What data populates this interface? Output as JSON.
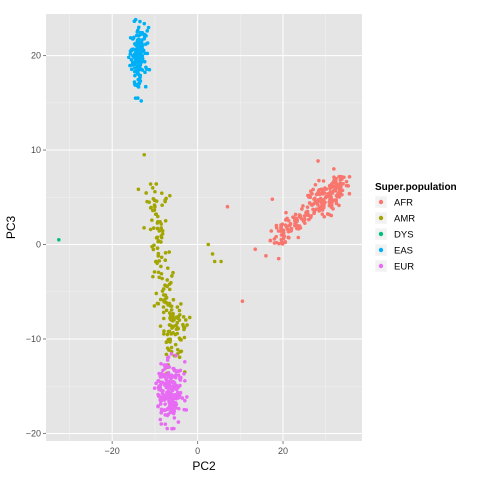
{
  "chart_data": {
    "type": "scatter",
    "xlabel": "PC2",
    "ylabel": "PC3",
    "xlim": [
      -35.5,
      38.5
    ],
    "ylim": [
      -20.8,
      24.4
    ],
    "x_ticks": [
      -20,
      0,
      20
    ],
    "y_ticks": [
      -20,
      -10,
      0,
      10,
      20
    ],
    "grid": true,
    "background": "#e5e5e5",
    "legend": {
      "title": "Super.population",
      "position": "right"
    },
    "series": [
      {
        "name": "AFR",
        "color": "#f8766d",
        "clusters": [
          {
            "n": 150,
            "x_from": 18,
            "y_from": 0.5,
            "x_to": 34,
            "y_to": 6.5,
            "spread_along": 0.07,
            "spread_across": 0.7
          },
          {
            "n": 80,
            "x_mean": 31,
            "y_mean": 5.5,
            "x_sd": 2.2,
            "y_sd": 1.0
          }
        ],
        "points": [
          [
            7,
            4
          ],
          [
            17.5,
            4.8
          ],
          [
            10.5,
            -6
          ],
          [
            16,
            -1.2
          ],
          [
            19,
            -1.5
          ],
          [
            13.5,
            -0.5
          ],
          [
            18.5,
            0.2
          ]
        ]
      },
      {
        "name": "AMR",
        "color": "#a3a500",
        "clusters": [
          {
            "n": 130,
            "x_from": -10.5,
            "y_from": 5.5,
            "x_to": -6,
            "y_to": -11.5,
            "spread_along": 0.06,
            "spread_across": 1.3
          },
          {
            "n": 40,
            "x_mean": -4.5,
            "y_mean": -9,
            "x_sd": 1.6,
            "y_sd": 1.6
          }
        ],
        "points": [
          [
            -12.5,
            9.5
          ],
          [
            -11,
            6.4
          ],
          [
            -10.5,
            6
          ],
          [
            -10,
            4
          ],
          [
            -10.5,
            3.6
          ],
          [
            -11,
            1.6
          ],
          [
            2.5,
            0
          ],
          [
            3.5,
            -1
          ],
          [
            4,
            -1.8
          ],
          [
            5.5,
            -1.8
          ],
          [
            -7,
            -13
          ],
          [
            -3,
            -13.5
          ]
        ]
      },
      {
        "name": "DYS",
        "color": "#00bf7d",
        "points": [
          [
            -32.5,
            0.5
          ]
        ]
      },
      {
        "name": "EAS",
        "color": "#00b0f6",
        "clusters": [
          {
            "n": 160,
            "x_mean": -14,
            "y_mean": 20,
            "x_sd": 1.0,
            "y_sd": 1.5
          }
        ],
        "points": [
          [
            -14.5,
            23.8
          ],
          [
            -13.5,
            23.6
          ],
          [
            -14,
            15.5
          ],
          [
            -13.2,
            15.2
          ]
        ]
      },
      {
        "name": "EUR",
        "color": "#e76bf3",
        "clusters": [
          {
            "n": 210,
            "x_mean": -6.5,
            "y_mean": -15.5,
            "x_sd": 1.4,
            "y_sd": 1.5
          }
        ],
        "points": [
          [
            -7,
            -12
          ],
          [
            -8.5,
            -19
          ],
          [
            -6,
            -19.5
          ],
          [
            -4.5,
            -18.8
          ]
        ]
      }
    ]
  }
}
